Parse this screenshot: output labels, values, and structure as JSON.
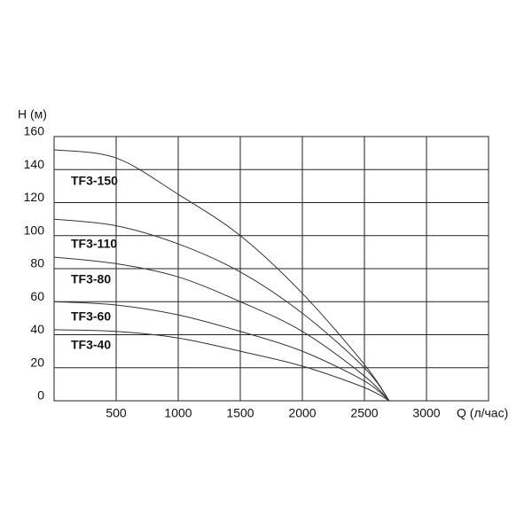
{
  "chart_data": {
    "type": "line",
    "y_label": "H (м)",
    "x_label": "Q (л/час)",
    "xlim": [
      0,
      3500
    ],
    "xticks": [
      500,
      1000,
      1500,
      2000,
      2500,
      3000
    ],
    "ylim": [
      0,
      160
    ],
    "yticks": [
      0,
      20,
      40,
      60,
      80,
      100,
      120,
      140,
      160
    ],
    "grid": true,
    "x": [
      0,
      500,
      1000,
      1500,
      2000,
      2500,
      2700
    ],
    "series": [
      {
        "name": "TF3-150",
        "color": "#333333",
        "values": [
          152,
          147,
          125,
          100,
          65,
          22,
          0
        ]
      },
      {
        "name": "TF3-110",
        "color": "#333333",
        "values": [
          110,
          106,
          95,
          78,
          53,
          20,
          0
        ]
      },
      {
        "name": "TF3-80",
        "color": "#333333",
        "values": [
          87,
          83,
          75,
          60,
          42,
          15,
          0
        ]
      },
      {
        "name": "TF3-60",
        "color": "#333333",
        "values": [
          60,
          58,
          52,
          42,
          30,
          12,
          0
        ]
      },
      {
        "name": "TF3-40",
        "color": "#333333",
        "values": [
          43,
          42,
          38,
          30,
          21,
          8,
          0
        ]
      }
    ]
  }
}
